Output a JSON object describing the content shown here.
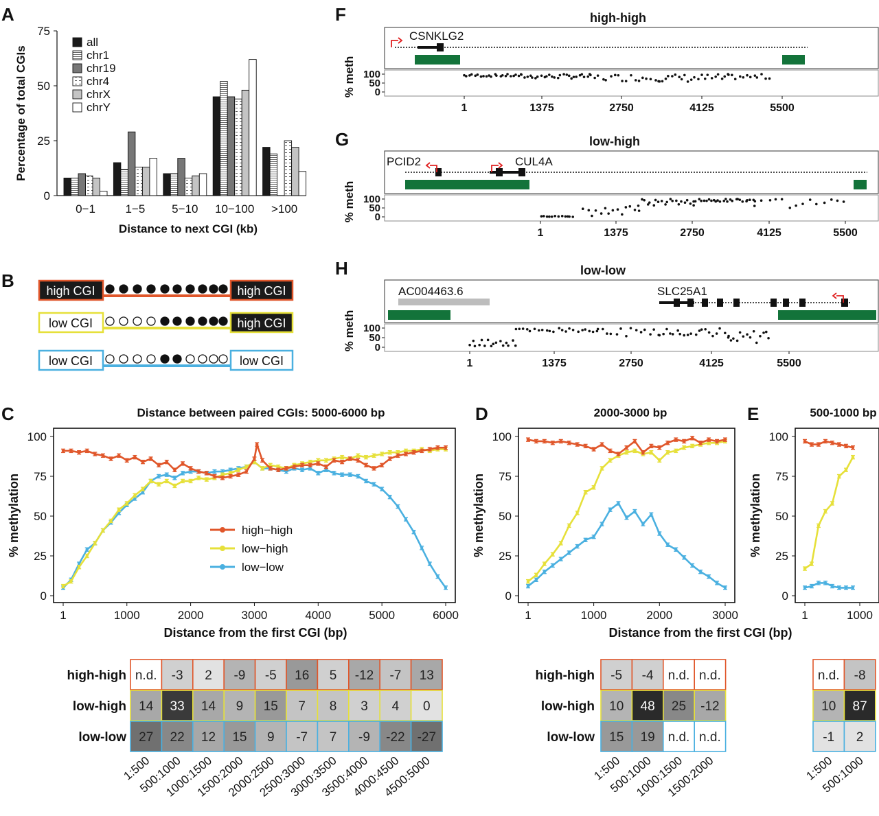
{
  "panel_labels": {
    "A": "A",
    "B": "B",
    "C": "C",
    "D": "D",
    "E": "E",
    "F": "F",
    "G": "G",
    "H": "H"
  },
  "colors": {
    "high": "#e0562a",
    "yellow": "#e6e03a",
    "blue": "#4ab0e0",
    "green": "#13733a",
    "red": "#e02020",
    "gray": "#bdbdbd"
  },
  "panelB": {
    "rows": [
      {
        "left": "high CGI",
        "right": "high CGI",
        "left_dark": true,
        "right_dark": true,
        "color": "#e0562a",
        "dots": [
          "f",
          "f",
          "f",
          "f",
          "f",
          "f",
          "f",
          "f",
          "f",
          "f"
        ]
      },
      {
        "left": "low CGI",
        "right": "high CGI",
        "left_dark": false,
        "right_dark": true,
        "color": "#e6e03a",
        "dots": [
          "o",
          "o",
          "o",
          "o",
          "f",
          "f",
          "f",
          "f",
          "f",
          "f"
        ]
      },
      {
        "left": "low CGI",
        "right": "low CGI",
        "left_dark": false,
        "right_dark": false,
        "color": "#4ab0e0",
        "dots": [
          "o",
          "o",
          "o",
          "o",
          "f",
          "f",
          "o",
          "o",
          "o",
          "o"
        ]
      }
    ]
  },
  "chart_data": [
    {
      "id": "A",
      "type": "bar",
      "title": "",
      "xlabel": "Distance to next CGI (kb)",
      "ylabel": "Percentage of total CGIs",
      "ylim": [
        0,
        75
      ],
      "yticks": [
        "0",
        "25",
        "50",
        "75"
      ],
      "categories": [
        "0−1",
        "1−5",
        "5−10",
        "10−100",
        ">100"
      ],
      "series": [
        {
          "name": "all",
          "values": [
            8,
            15,
            10,
            45,
            22
          ],
          "fill": "#1a1a1a",
          "pattern": "none"
        },
        {
          "name": "chr1",
          "values": [
            8,
            12,
            10,
            52,
            19
          ],
          "fill": "#ffffff",
          "pattern": "hlines"
        },
        {
          "name": "chr19",
          "values": [
            10,
            29,
            17,
            45,
            0
          ],
          "fill": "#777777",
          "pattern": "none"
        },
        {
          "name": "chr4",
          "values": [
            9,
            13,
            8,
            44,
            25
          ],
          "fill": "#ffffff",
          "pattern": "dashes"
        },
        {
          "name": "chrX",
          "values": [
            8,
            13,
            9,
            48,
            22
          ],
          "fill": "#c4c4c4",
          "pattern": "none"
        },
        {
          "name": "chrY",
          "values": [
            2,
            17,
            10,
            62,
            11
          ],
          "fill": "#ffffff",
          "pattern": "none"
        }
      ],
      "legend_position": "top-left"
    },
    {
      "id": "C",
      "type": "line",
      "title": "Distance between paired CGIs: 5000-6000 bp",
      "xlabel": "Distance from the first CGI (bp)",
      "ylabel": "% methylation",
      "xlim": [
        1,
        6000
      ],
      "ylim": [
        0,
        100
      ],
      "xticks": [
        "1",
        "1000",
        "2000",
        "3000",
        "4000",
        "5000",
        "6000"
      ],
      "yticks": [
        "0",
        "25",
        "50",
        "75",
        "100"
      ],
      "legend": [
        "high−high",
        "low−high",
        "low−low"
      ],
      "series": [
        {
          "name": "high−high",
          "color": "#e0562a",
          "x": [
            1,
            125,
            250,
            375,
            500,
            625,
            750,
            875,
            1000,
            1125,
            1250,
            1375,
            1500,
            1625,
            1750,
            1875,
            2000,
            2125,
            2250,
            2375,
            2500,
            2625,
            2750,
            2875,
            3000,
            3040,
            3125,
            3250,
            3375,
            3500,
            3625,
            3750,
            3875,
            4000,
            4125,
            4250,
            4375,
            4500,
            4625,
            4750,
            4875,
            5000,
            5125,
            5250,
            5375,
            5500,
            5625,
            5750,
            5875,
            6000
          ],
          "y": [
            91,
            91,
            90,
            91,
            89,
            88,
            86,
            88,
            85,
            87,
            84,
            86,
            82,
            84,
            79,
            83,
            80,
            78,
            77,
            75,
            74,
            75,
            76,
            78,
            86,
            95,
            85,
            80,
            79,
            80,
            81,
            82,
            82,
            83,
            81,
            85,
            84,
            86,
            85,
            82,
            80,
            82,
            86,
            88,
            89,
            90,
            91,
            92,
            93,
            93
          ]
        },
        {
          "name": "low−high",
          "color": "#e6e03a",
          "x": [
            1,
            125,
            250,
            375,
            500,
            625,
            750,
            875,
            1000,
            1125,
            1250,
            1375,
            1500,
            1625,
            1750,
            1875,
            2000,
            2125,
            2250,
            2375,
            2500,
            2625,
            2750,
            2875,
            3000,
            3125,
            3250,
            3375,
            3500,
            3625,
            3750,
            3875,
            4000,
            4125,
            4250,
            4375,
            4500,
            4625,
            4750,
            4875,
            5000,
            5125,
            5250,
            5375,
            5500,
            5625,
            5750,
            5875,
            6000
          ],
          "y": [
            6,
            9,
            18,
            25,
            33,
            41,
            47,
            54,
            58,
            63,
            67,
            72,
            70,
            72,
            69,
            72,
            72,
            74,
            73,
            74,
            76,
            77,
            79,
            81,
            84,
            80,
            82,
            81,
            80,
            82,
            83,
            84,
            85,
            85,
            86,
            87,
            86,
            88,
            87,
            88,
            89,
            90,
            90,
            91,
            91,
            92,
            91,
            92,
            92
          ]
        },
        {
          "name": "low−low",
          "color": "#4ab0e0",
          "x": [
            1,
            125,
            250,
            375,
            500,
            625,
            750,
            875,
            1000,
            1125,
            1250,
            1375,
            1500,
            1625,
            1750,
            1875,
            2000,
            2125,
            2250,
            2375,
            2500,
            2625,
            2750,
            2875,
            3000,
            3125,
            3250,
            3375,
            3500,
            3625,
            3750,
            3875,
            4000,
            4125,
            4250,
            4375,
            4500,
            4625,
            4750,
            4875,
            5000,
            5125,
            5250,
            5375,
            5500,
            5625,
            5750,
            5875,
            6000
          ],
          "y": [
            5,
            10,
            20,
            29,
            33,
            41,
            46,
            52,
            57,
            61,
            65,
            72,
            75,
            76,
            74,
            77,
            78,
            78,
            77,
            78,
            78,
            79,
            80,
            81,
            84,
            80,
            80,
            79,
            78,
            80,
            79,
            80,
            77,
            79,
            77,
            76,
            76,
            75,
            72,
            70,
            67,
            62,
            56,
            48,
            40,
            30,
            20,
            12,
            5
          ]
        }
      ]
    },
    {
      "id": "D",
      "type": "line",
      "title": "2000-3000 bp",
      "xlabel": "Distance from the first CGI (bp)",
      "ylabel": "% methylation",
      "xlim": [
        1,
        3000
      ],
      "ylim": [
        0,
        100
      ],
      "xticks": [
        "1",
        "1000",
        "2000",
        "3000"
      ],
      "yticks": [
        "0",
        "25",
        "50",
        "75",
        "100"
      ],
      "series": [
        {
          "name": "high−high",
          "color": "#e0562a",
          "x": [
            1,
            125,
            250,
            375,
            500,
            625,
            750,
            875,
            1000,
            1125,
            1250,
            1375,
            1500,
            1625,
            1750,
            1875,
            2000,
            2125,
            2250,
            2375,
            2500,
            2625,
            2750,
            2875,
            3000
          ],
          "y": [
            98,
            97,
            97,
            96,
            97,
            96,
            95,
            94,
            92,
            95,
            91,
            89,
            93,
            97,
            90,
            94,
            93,
            96,
            98,
            97,
            99,
            96,
            98,
            97,
            98
          ]
        },
        {
          "name": "low−high",
          "color": "#e6e03a",
          "x": [
            1,
            125,
            250,
            375,
            500,
            625,
            750,
            875,
            1000,
            1125,
            1250,
            1375,
            1500,
            1625,
            1750,
            1875,
            2000,
            2125,
            2250,
            2375,
            2500,
            2625,
            2750,
            2875,
            3000
          ],
          "y": [
            9,
            13,
            20,
            26,
            33,
            44,
            52,
            65,
            68,
            80,
            85,
            88,
            90,
            91,
            89,
            90,
            85,
            90,
            91,
            93,
            94,
            95,
            96,
            96,
            97
          ]
        },
        {
          "name": "low−low",
          "color": "#4ab0e0",
          "x": [
            1,
            125,
            250,
            375,
            500,
            625,
            750,
            875,
            1000,
            1125,
            1250,
            1375,
            1500,
            1625,
            1750,
            1875,
            2000,
            2125,
            2250,
            2375,
            2500,
            2625,
            2750,
            2875,
            3000
          ],
          "y": [
            6,
            10,
            15,
            19,
            23,
            27,
            31,
            35,
            37,
            45,
            54,
            58,
            49,
            53,
            45,
            51,
            39,
            32,
            29,
            24,
            19,
            15,
            12,
            8,
            5
          ]
        }
      ]
    },
    {
      "id": "E",
      "type": "line",
      "title": "500-1000 bp",
      "xlabel": "",
      "ylabel": "% methylation",
      "xlim": [
        1,
        1000
      ],
      "ylim": [
        0,
        100
      ],
      "xticks": [
        "1",
        "1000"
      ],
      "yticks": [
        "0",
        "25",
        "50",
        "75",
        "100"
      ],
      "series": [
        {
          "name": "high−high",
          "color": "#e0562a",
          "x": [
            1,
            125,
            250,
            375,
            500,
            625,
            750,
            875
          ],
          "y": [
            97,
            95,
            95,
            97,
            96,
            95,
            94,
            93
          ]
        },
        {
          "name": "low−high",
          "color": "#e6e03a",
          "x": [
            1,
            125,
            250,
            375,
            500,
            625,
            750,
            875
          ],
          "y": [
            17,
            20,
            44,
            53,
            58,
            75,
            79,
            87
          ]
        },
        {
          "name": "low−low",
          "color": "#4ab0e0",
          "x": [
            1,
            125,
            250,
            375,
            500,
            625,
            750,
            875
          ],
          "y": [
            5,
            6,
            8,
            8,
            6,
            5,
            5,
            5
          ]
        }
      ]
    },
    {
      "id": "F",
      "type": "scatter",
      "title": "high-high",
      "ylabel": "% meth",
      "xticks": [
        "1",
        "1375",
        "2750",
        "4125",
        "5500"
      ],
      "yticks": [
        "100",
        "50",
        "0"
      ],
      "gene": "CSNKLG2"
    },
    {
      "id": "G",
      "type": "scatter",
      "title": "low-high",
      "ylabel": "% meth",
      "xticks": [
        "1",
        "1375",
        "2750",
        "4125",
        "5500"
      ],
      "yticks": [
        "100",
        "50",
        "0"
      ],
      "genes": [
        "PCID2",
        "CUL4A"
      ]
    },
    {
      "id": "H",
      "type": "scatter",
      "title": "low-low",
      "ylabel": "% meth",
      "xticks": [
        "1",
        "1375",
        "2750",
        "4125",
        "5500"
      ],
      "yticks": [
        "100",
        "50",
        "0"
      ],
      "genes": [
        "AC004463.6",
        "SLC25A1"
      ]
    },
    {
      "id": "C-table",
      "type": "table",
      "row_labels": [
        "high-high",
        "low-high",
        "low-low"
      ],
      "col_labels": [
        "1:500",
        "500:1000",
        "1000:1500",
        "1500:2000",
        "2000:2500",
        "2500:3000",
        "3000:3500",
        "3500:4000",
        "4000:4500",
        "4500:5000"
      ],
      "rows": [
        [
          "n.d.",
          "-3",
          "2",
          "-9",
          "-5",
          "16",
          "5",
          "-12",
          "-7",
          "13"
        ],
        [
          "14",
          "33",
          "14",
          "9",
          "15",
          "7",
          "8",
          "3",
          "4",
          "0"
        ],
        [
          "27",
          "22",
          "12",
          "15",
          "9",
          "-7",
          "7",
          "-9",
          "-22",
          "-27"
        ]
      ]
    },
    {
      "id": "D-table",
      "type": "table",
      "row_labels": [
        "high-high",
        "low-high",
        "low-low"
      ],
      "col_labels": [
        "1:500",
        "500:1000",
        "1000:1500",
        "1500:2000"
      ],
      "rows": [
        [
          "-5",
          "-4",
          "n.d.",
          "n.d."
        ],
        [
          "10",
          "48",
          "25",
          "-12"
        ],
        [
          "15",
          "19",
          "n.d.",
          "n.d."
        ]
      ]
    },
    {
      "id": "E-table",
      "type": "table",
      "row_labels": [
        "high-high",
        "low-high",
        "low-low"
      ],
      "col_labels": [
        "1:500",
        "500:1000"
      ],
      "rows": [
        [
          "n.d.",
          "-8"
        ],
        [
          "10",
          "87"
        ],
        [
          "-1",
          "2"
        ]
      ]
    }
  ]
}
